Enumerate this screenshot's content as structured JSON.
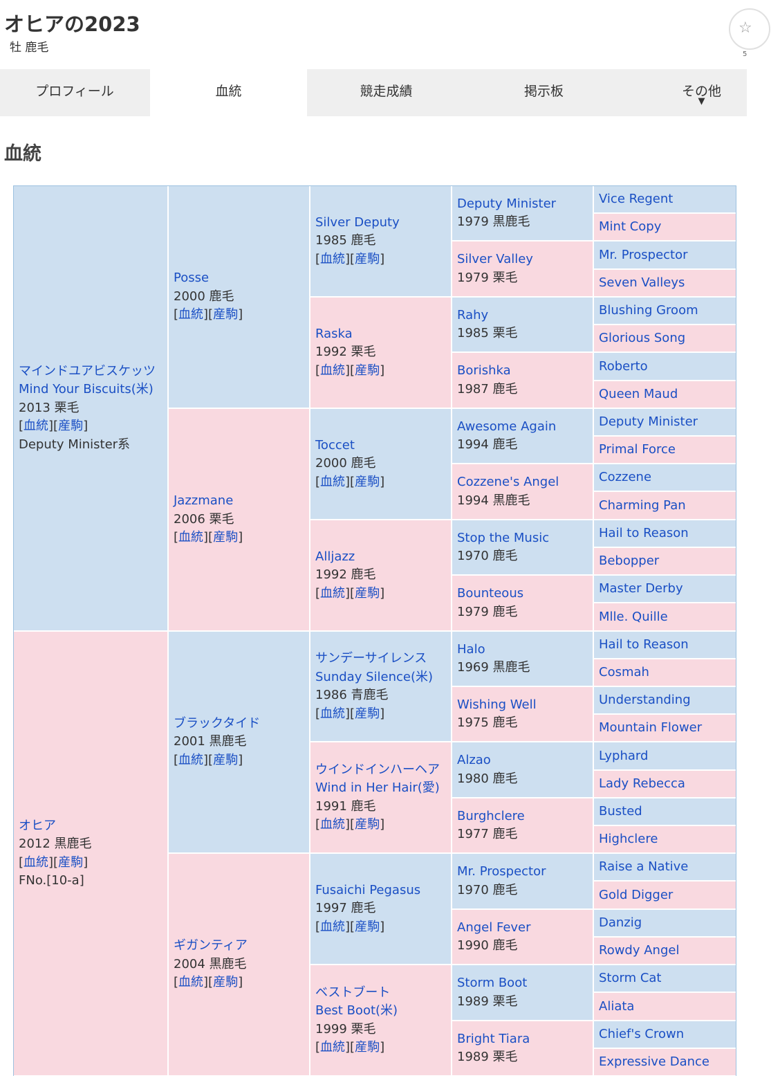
{
  "header": {
    "title": "オヒアの2023",
    "subtitle": "牡 鹿毛",
    "fav_icon": "star-icon",
    "fav_count": "5"
  },
  "tabs": [
    {
      "label": "プロフィール"
    },
    {
      "label": "血統",
      "active": true
    },
    {
      "label": "競走成績"
    },
    {
      "label": "掲示板"
    },
    {
      "label": "その他",
      "arrow": "▼"
    }
  ],
  "section_title": "血統",
  "links": {
    "pedigree": "血統",
    "offspring": "産駒"
  },
  "colors": {
    "male": "#cddff0",
    "female": "#f9d9e0",
    "link": "#1a4fc4"
  },
  "pedigree": {
    "gen1": [
      {
        "jp": "マインドユアビスケッツ",
        "name": "Mind Your Biscuits(米)",
        "info": "2013 栗毛",
        "extra": "Deputy Minister系",
        "sex": "male"
      },
      {
        "name": "オヒア",
        "info": "2012 黒鹿毛",
        "extra": "FNo.[10-a]",
        "sex": "female"
      }
    ],
    "gen2": [
      {
        "name": "Posse",
        "info": "2000 鹿毛",
        "sex": "male"
      },
      {
        "name": "Jazzmane",
        "info": "2006 栗毛",
        "sex": "female"
      },
      {
        "name": "ブラックタイド",
        "info": "2001 黒鹿毛",
        "sex": "male"
      },
      {
        "name": "ギガンティア",
        "info": "2004 黒鹿毛",
        "sex": "female"
      }
    ],
    "gen3": [
      {
        "name": "Silver Deputy",
        "info": "1985 鹿毛",
        "sex": "male"
      },
      {
        "name": "Raska",
        "info": "1992 栗毛",
        "sex": "female"
      },
      {
        "name": "Toccet",
        "info": "2000 鹿毛",
        "sex": "male"
      },
      {
        "name": "Alljazz",
        "info": "1992 鹿毛",
        "sex": "female"
      },
      {
        "jp": "サンデーサイレンス",
        "name": "Sunday Silence(米)",
        "info": "1986 青鹿毛",
        "sex": "male"
      },
      {
        "jp": "ウインドインハーヘア",
        "name": "Wind in Her Hair(愛)",
        "info": "1991 鹿毛",
        "sex": "female"
      },
      {
        "name": "Fusaichi Pegasus",
        "info": "1997 鹿毛",
        "sex": "male"
      },
      {
        "jp": "ベストブート",
        "name": "Best Boot(米)",
        "info": "1999 栗毛",
        "sex": "female"
      }
    ],
    "gen4": [
      {
        "name": "Deputy Minister",
        "info": "1979 黒鹿毛",
        "sex": "male"
      },
      {
        "name": "Silver Valley",
        "info": "1979 栗毛",
        "sex": "female"
      },
      {
        "name": "Rahy",
        "info": "1985 栗毛",
        "sex": "male"
      },
      {
        "name": "Borishka",
        "info": "1987 鹿毛",
        "sex": "female"
      },
      {
        "name": "Awesome Again",
        "info": "1994 鹿毛",
        "sex": "male"
      },
      {
        "name": "Cozzene's Angel",
        "info": "1994 黒鹿毛",
        "sex": "female"
      },
      {
        "name": "Stop the Music",
        "info": "1970 鹿毛",
        "sex": "male"
      },
      {
        "name": "Bounteous",
        "info": "1979 鹿毛",
        "sex": "female"
      },
      {
        "name": "Halo",
        "info": "1969 黒鹿毛",
        "sex": "male"
      },
      {
        "name": "Wishing Well",
        "info": "1975 鹿毛",
        "sex": "female"
      },
      {
        "name": "Alzao",
        "info": "1980 鹿毛",
        "sex": "male"
      },
      {
        "name": "Burghclere",
        "info": "1977 鹿毛",
        "sex": "female"
      },
      {
        "name": "Mr. Prospector",
        "info": "1970 鹿毛",
        "sex": "male"
      },
      {
        "name": "Angel Fever",
        "info": "1990 鹿毛",
        "sex": "female"
      },
      {
        "name": "Storm Boot",
        "info": "1989 栗毛",
        "sex": "male"
      },
      {
        "name": "Bright Tiara",
        "info": "1989 栗毛",
        "sex": "female"
      }
    ],
    "gen5": [
      {
        "name": "Vice Regent",
        "sex": "male"
      },
      {
        "name": "Mint Copy",
        "sex": "female"
      },
      {
        "name": "Mr. Prospector",
        "sex": "male"
      },
      {
        "name": "Seven Valleys",
        "sex": "female"
      },
      {
        "name": "Blushing Groom",
        "sex": "male"
      },
      {
        "name": "Glorious Song",
        "sex": "female"
      },
      {
        "name": "Roberto",
        "sex": "male"
      },
      {
        "name": "Queen Maud",
        "sex": "female"
      },
      {
        "name": "Deputy Minister",
        "sex": "male"
      },
      {
        "name": "Primal Force",
        "sex": "female"
      },
      {
        "name": "Cozzene",
        "sex": "male"
      },
      {
        "name": "Charming Pan",
        "sex": "female"
      },
      {
        "name": "Hail to Reason",
        "sex": "male"
      },
      {
        "name": "Bebopper",
        "sex": "female"
      },
      {
        "name": "Master Derby",
        "sex": "male"
      },
      {
        "name": "Mlle. Quille",
        "sex": "female"
      },
      {
        "name": "Hail to Reason",
        "sex": "male"
      },
      {
        "name": "Cosmah",
        "sex": "female"
      },
      {
        "name": "Understanding",
        "sex": "male"
      },
      {
        "name": "Mountain Flower",
        "sex": "female"
      },
      {
        "name": "Lyphard",
        "sex": "male"
      },
      {
        "name": "Lady Rebecca",
        "sex": "female"
      },
      {
        "name": "Busted",
        "sex": "male"
      },
      {
        "name": "Highclere",
        "sex": "female"
      },
      {
        "name": "Raise a Native",
        "sex": "male"
      },
      {
        "name": "Gold Digger",
        "sex": "female"
      },
      {
        "name": "Danzig",
        "sex": "male"
      },
      {
        "name": "Rowdy Angel",
        "sex": "female"
      },
      {
        "name": "Storm Cat",
        "sex": "male"
      },
      {
        "name": "Aliata",
        "sex": "female"
      },
      {
        "name": "Chief's Crown",
        "sex": "male"
      },
      {
        "name": "Expressive Dance",
        "sex": "female"
      }
    ]
  }
}
